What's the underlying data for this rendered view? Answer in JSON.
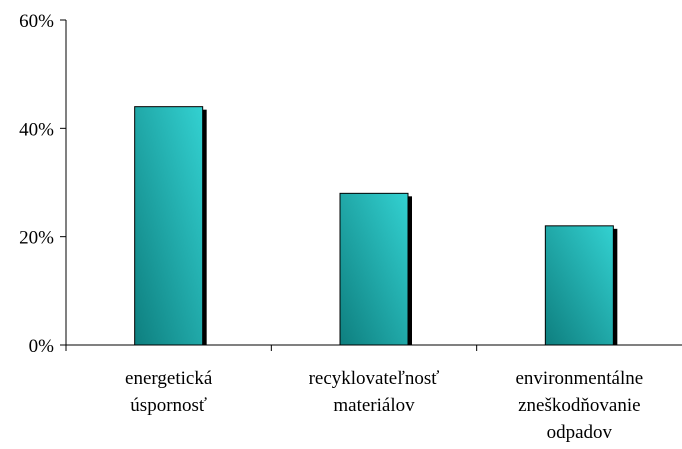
{
  "chart_data": {
    "type": "bar",
    "categories": [
      [
        "energetická",
        "úspornosť"
      ],
      [
        "recyklovateľnosť",
        "materiálov"
      ],
      [
        "environmentálne",
        "zneškodňovanie",
        "odpadov"
      ]
    ],
    "values": [
      44,
      28,
      22
    ],
    "ylim": [
      0,
      60
    ],
    "yticks": [
      0,
      20,
      40,
      60
    ],
    "ytick_labels": [
      "0%",
      "20%",
      "40%",
      "60%"
    ],
    "title": "",
    "xlabel": "",
    "ylabel": "",
    "grid": false,
    "colors": {
      "bar_light": "#33D1D1",
      "bar_dark": "#0E7F7F",
      "shadow": "#000000",
      "axis": "#000000"
    }
  }
}
